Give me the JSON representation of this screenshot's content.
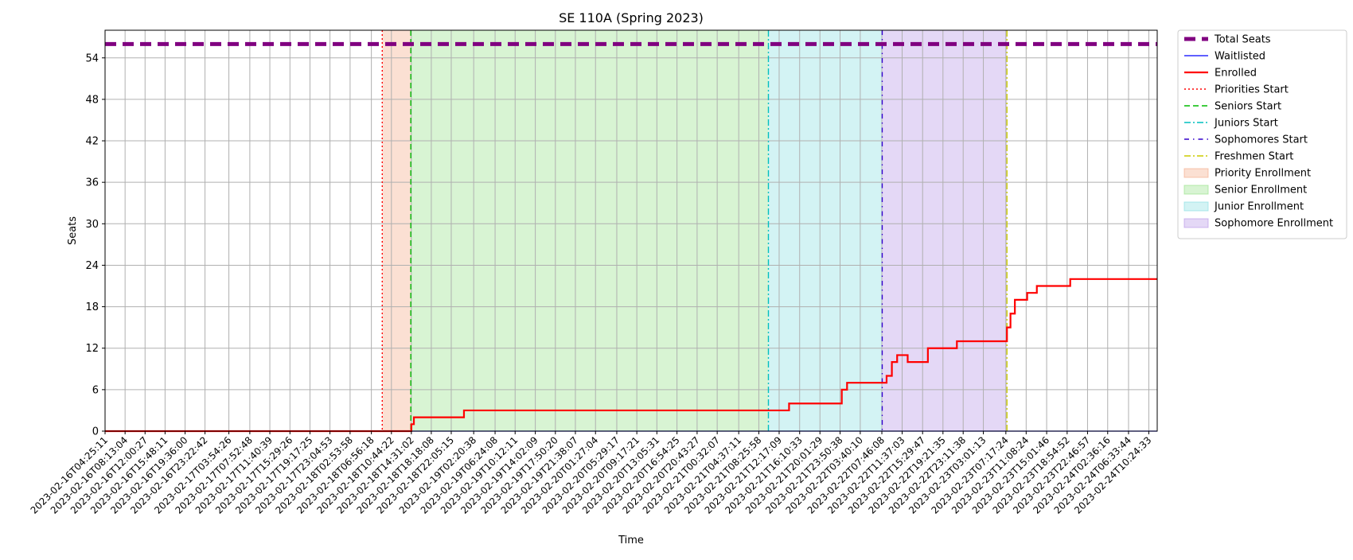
{
  "chart_data": {
    "type": "line",
    "title": "SE 110A (Spring 2023)",
    "xlabel": "Time",
    "ylabel": "Seats",
    "ylim": [
      0,
      58
    ],
    "yticks": [
      0,
      6,
      12,
      18,
      24,
      30,
      36,
      42,
      48,
      54
    ],
    "grid": true,
    "legend_position": "outside-right",
    "x_start": "2023-02-16T04:25:11",
    "x_end": "2023-02-24T12:00:00",
    "x_ticks": [
      "2023-02-16T04:25:11",
      "2023-02-16T08:13:04",
      "2023-02-16T12:00:27",
      "2023-02-16T15:48:11",
      "2023-02-16T19:36:00",
      "2023-02-16T23:22:42",
      "2023-02-17T03:54:26",
      "2023-02-17T07:52:48",
      "2023-02-17T11:40:39",
      "2023-02-17T15:29:26",
      "2023-02-17T19:17:25",
      "2023-02-17T23:04:53",
      "2023-02-18T02:53:58",
      "2023-02-18T06:56:18",
      "2023-02-18T10:44:22",
      "2023-02-18T14:31:02",
      "2023-02-18T18:18:08",
      "2023-02-18T22:05:15",
      "2023-02-19T02:20:38",
      "2023-02-19T06:24:08",
      "2023-02-19T10:12:11",
      "2023-02-19T14:02:09",
      "2023-02-19T17:50:20",
      "2023-02-19T21:38:07",
      "2023-02-20T01:27:04",
      "2023-02-20T05:29:17",
      "2023-02-20T09:17:21",
      "2023-02-20T13:05:31",
      "2023-02-20T16:54:25",
      "2023-02-20T20:43:27",
      "2023-02-21T00:32:07",
      "2023-02-21T04:37:11",
      "2023-02-21T08:25:58",
      "2023-02-21T12:17:09",
      "2023-02-21T16:10:33",
      "2023-02-21T20:01:29",
      "2023-02-21T23:50:38",
      "2023-02-22T03:40:10",
      "2023-02-22T07:46:08",
      "2023-02-22T11:37:03",
      "2023-02-22T15:29:47",
      "2023-02-22T19:21:35",
      "2023-02-22T23:11:38",
      "2023-02-23T03:01:13",
      "2023-02-23T07:17:24",
      "2023-02-23T11:08:24",
      "2023-02-23T15:01:46",
      "2023-02-23T18:54:52",
      "2023-02-23T22:46:57",
      "2023-02-24T02:36:16",
      "2023-02-24T06:33:44",
      "2023-02-24T10:24:33"
    ],
    "series": [
      {
        "name": "Total Seats",
        "color": "#800080",
        "style": "dashed-thick",
        "kind": "line",
        "points": [
          [
            "2023-02-16T04:25:11",
            56
          ],
          [
            "2023-02-24T12:00:00",
            56
          ]
        ]
      },
      {
        "name": "Waitlisted",
        "color": "#0000ff",
        "style": "solid-thin",
        "kind": "line",
        "points": [
          [
            "2023-02-16T04:25:11",
            0
          ],
          [
            "2023-02-24T12:00:00",
            0
          ]
        ]
      },
      {
        "name": "Enrolled",
        "color": "#ff0000",
        "style": "solid",
        "kind": "step",
        "points": [
          [
            "2023-02-16T04:25:11",
            0
          ],
          [
            "2023-02-18T14:31:02",
            1
          ],
          [
            "2023-02-18T15:00:00",
            2
          ],
          [
            "2023-02-19T00:30:00",
            3
          ],
          [
            "2023-02-21T14:10:00",
            4
          ],
          [
            "2023-02-22T00:10:00",
            6
          ],
          [
            "2023-02-22T01:10:00",
            7
          ],
          [
            "2023-02-22T08:40:00",
            8
          ],
          [
            "2023-02-22T09:40:00",
            10
          ],
          [
            "2023-02-22T10:40:00",
            11
          ],
          [
            "2023-02-22T12:40:00",
            10
          ],
          [
            "2023-02-22T16:30:00",
            12
          ],
          [
            "2023-02-22T22:00:00",
            13
          ],
          [
            "2023-02-23T07:30:00",
            15
          ],
          [
            "2023-02-23T08:10:00",
            17
          ],
          [
            "2023-02-23T09:00:00",
            19
          ],
          [
            "2023-02-23T11:20:00",
            20
          ],
          [
            "2023-02-23T13:10:00",
            21
          ],
          [
            "2023-02-23T19:30:00",
            22
          ],
          [
            "2023-02-24T12:00:00",
            22
          ]
        ]
      }
    ],
    "markers": [
      {
        "name": "Priorities Start",
        "time": "2023-02-18T09:00:00",
        "color": "#ff0000",
        "style": "dotted"
      },
      {
        "name": "Seniors Start",
        "time": "2023-02-18T14:25:00",
        "color": "#00bb00",
        "style": "dashed"
      },
      {
        "name": "Juniors Start",
        "time": "2023-02-21T10:15:00",
        "color": "#00bfbf",
        "style": "dashdot"
      },
      {
        "name": "Sophomores Start",
        "time": "2023-02-22T07:50:00",
        "color": "#3300cc",
        "style": "dashdot-dense"
      },
      {
        "name": "Freshmen Start",
        "time": "2023-02-23T07:30:00",
        "color": "#cccc00",
        "style": "dashdot"
      }
    ],
    "spans": [
      {
        "name": "Priority Enrollment",
        "start": "2023-02-18T09:00:00",
        "end": "2023-02-18T14:25:00",
        "color": "#f4a582"
      },
      {
        "name": "Senior Enrollment",
        "start": "2023-02-18T14:25:00",
        "end": "2023-02-21T10:15:00",
        "color": "#90e080"
      },
      {
        "name": "Junior Enrollment",
        "start": "2023-02-21T10:15:00",
        "end": "2023-02-22T07:50:00",
        "color": "#80dde0"
      },
      {
        "name": "Sophomore Enrollment",
        "start": "2023-02-22T07:50:00",
        "end": "2023-02-23T07:30:00",
        "color": "#b28ee6"
      }
    ]
  }
}
